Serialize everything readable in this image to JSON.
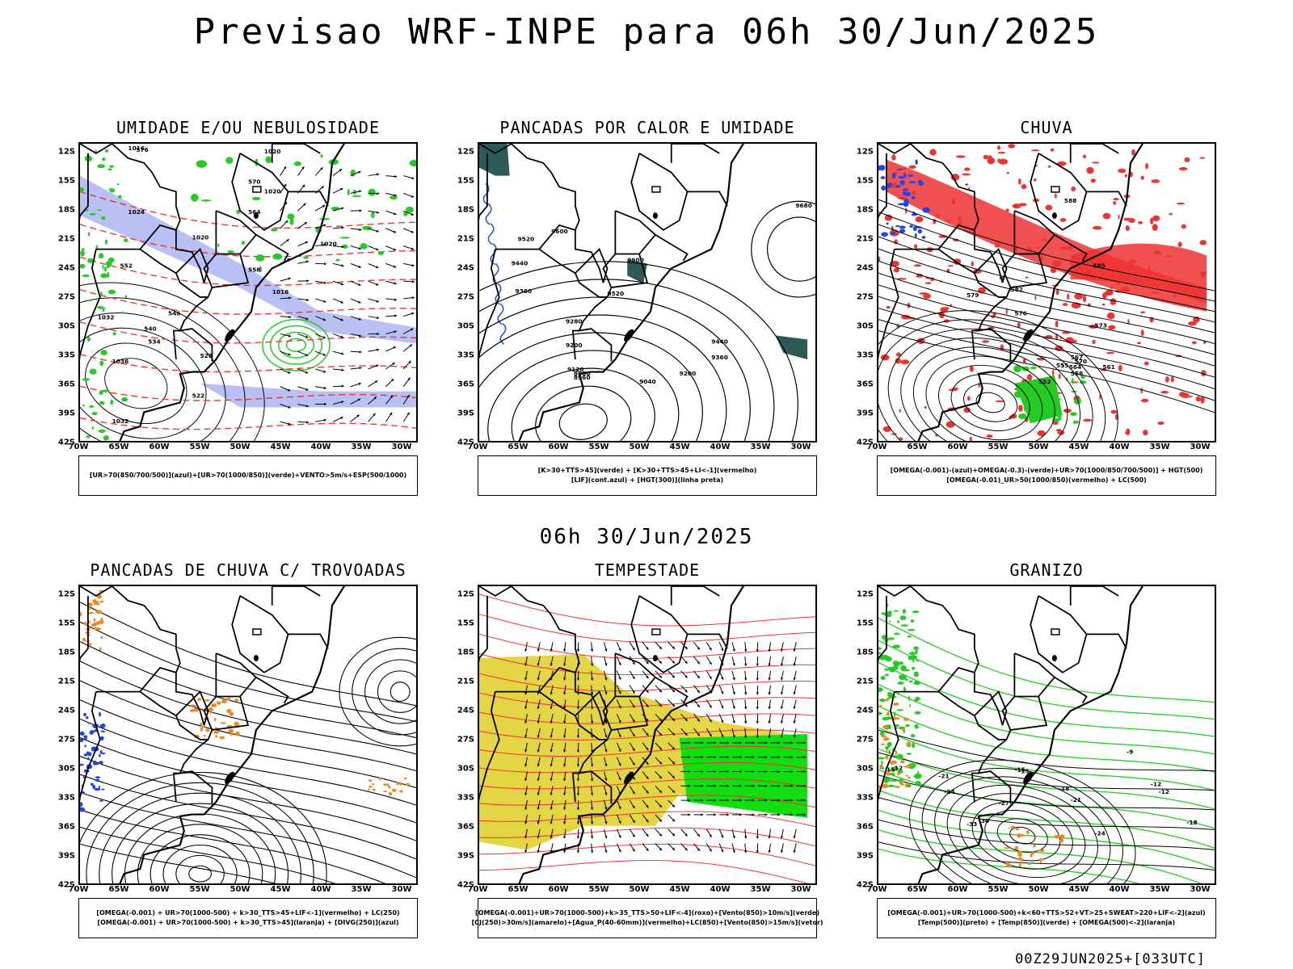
{
  "title": "Previsao WRF-INPE  para 06h 30/Jun/2025",
  "mid_title": "06h 30/Jun/2025",
  "footer": "00Z29JUN2025+[033UTC]",
  "lat_ticks": [
    "12S",
    "15S",
    "18S",
    "21S",
    "24S",
    "27S",
    "30S",
    "33S",
    "36S",
    "39S",
    "42S"
  ],
  "lon_ticks": [
    "70W",
    "65W",
    "60W",
    "55W",
    "50W",
    "45W",
    "40W",
    "35W",
    "30W"
  ],
  "panels": [
    {
      "title": "UMIDADE E/OU NEBULOSIDADE",
      "legend": [
        "[UR>70(850/700/500)](azul)+[UR>70(1000/850)](verde)+VENTO>5m/s+ESP(500/1000)"
      ],
      "labels": [
        "1016",
        "1020",
        "1020",
        "1020",
        "1020",
        "1024",
        "1032",
        "1036",
        "1032",
        "1016",
        "576",
        "570",
        "564",
        "558",
        "552",
        "546",
        "540",
        "534",
        "528",
        "522"
      ],
      "colors": {
        "fill": "#a8b0f0",
        "lines": "#22cc22",
        "dash": "#ee3333",
        "contour": "#000000"
      }
    },
    {
      "title": "PANCADAS POR CALOR E UMIDADE",
      "legend": [
        "[K>30+TTS>45](verde) + [K>30+TTS>45+LI<-1](vermelho)",
        "[LIF](cont.azul) + [HGT(300)](linha preta)"
      ],
      "labels": [
        "9680",
        "9600",
        "9520",
        "9440",
        "9360",
        "9280",
        "9200",
        "9120",
        "9040",
        "8960",
        "8880",
        "9600",
        "9520",
        "9440",
        "9360",
        "9200"
      ],
      "colors": {
        "fill": "#2d5a56",
        "lines": "#2244ee",
        "contour": "#000000"
      }
    },
    {
      "title": "CHUVA",
      "legend": [
        "[OMEGA(-0.001)-(azul)+OMEGA(-0.3)-(verde)+UR>70(1000/850/700/500)] + HGT(500)",
        "[OMEGA(-0.01)_UR>50(1000/850)(vermelho) + LC(500)"
      ],
      "labels": [
        "588",
        "585",
        "582",
        "579",
        "576",
        "573",
        "570",
        "567",
        "564",
        "561",
        "558",
        "555",
        "552"
      ],
      "colors": {
        "fill": "#ee3333",
        "blue": "#2244ee",
        "green": "#22cc22",
        "contour": "#000000"
      }
    },
    {
      "title": "PANCADAS DE CHUVA C/ TROVOADAS",
      "legend": [
        "[OMEGA(-0.001) + UR>70(1000-500) + k>30_TTS>45+LIF<-1](vermelho) + LC(250)",
        "[OMEGA(-0.001) + UR>70(1000-500) + k>30_TTS>45](laranja) + [DIVG(250)](azul)"
      ],
      "labels": [],
      "colors": {
        "orange": "#ee8822",
        "blue": "#2244ee",
        "contour": "#000000"
      }
    },
    {
      "title": "TEMPESTADE",
      "legend": [
        "[OMEGA(-0.001)+UR>70(1000-500)+k>35_TTS>50+LIF<-4](roxo)+[Vento(850)>10m/s](verde)",
        "[CJ(250)>30m/s](amarelo)+[Agua_P(40-60mm)](vermelho)+LC(850)+[Vento(850)>15m/s](vetor)"
      ],
      "labels": [],
      "colors": {
        "fill": "#e0d030",
        "green": "#11dd11",
        "red": "#ee3333",
        "contour": "#000000"
      }
    },
    {
      "title": "GRANIZO",
      "legend": [
        "[OMEGA(-0.001)+UR>70(1000-500)+k<60+TTS>52+VT>25+SWEAT>220+LIF<-2](azul)",
        "[Temp(500)](preto) + [Temp(850)](verde) + [OMEGA(500)<-2](laranja)"
      ],
      "labels": [
        "-9",
        "-12",
        "-15",
        "-18",
        "-21",
        "-24",
        "-27",
        "-30",
        "-33",
        "-15",
        "-18",
        "-21",
        "-24",
        "-12",
        "-9",
        "12",
        "15"
      ],
      "colors": {
        "lines": "#22cc22",
        "orange": "#ee8822",
        "contour": "#000000"
      }
    }
  ]
}
